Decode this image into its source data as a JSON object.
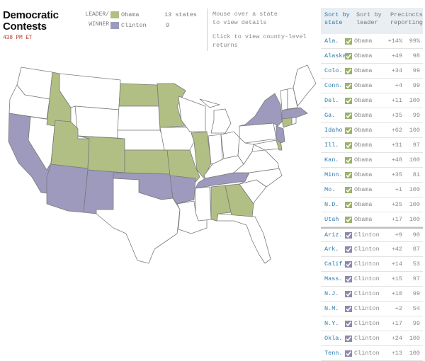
{
  "header": {
    "title_line1": "Democratic",
    "title_line2": "Contests",
    "time": "438 PM ET"
  },
  "legend": {
    "hdr_line1": "LEADER/",
    "hdr_line2": "WINNER",
    "items": [
      {
        "name": "Obama",
        "count": "13 states",
        "color": "#b1bf84"
      },
      {
        "name": "Clinton",
        "count": "9",
        "color": "#9d9abd"
      }
    ]
  },
  "info": {
    "line1": "Mouse over a state",
    "line2": "to view details",
    "line3": "Click to view county-level",
    "line4": "returns"
  },
  "colors": {
    "obama": "#b1bf84",
    "clinton": "#9d9abd",
    "none": "#ffffff",
    "border": "#7a7a7a",
    "check_obama": "#9cb26a",
    "check_clinton": "#8f89ad"
  },
  "table": {
    "col_state": [
      "Sort by",
      "state"
    ],
    "col_leader": [
      "Sort by",
      "leader"
    ],
    "col_prec": [
      "Precincts",
      "reporting"
    ],
    "rows": [
      {
        "state": "Ala.",
        "leader": "Obama",
        "margin": "+14%",
        "prec": "99%"
      },
      {
        "state": "Alaska",
        "leader": "Obama",
        "margin": "+49",
        "prec": "98"
      },
      {
        "state": "Colo.",
        "leader": "Obama",
        "margin": "+34",
        "prec": "99"
      },
      {
        "state": "Conn.",
        "leader": "Obama",
        "margin": "+4",
        "prec": "99"
      },
      {
        "state": "Del.",
        "leader": "Obama",
        "margin": "+11",
        "prec": "100"
      },
      {
        "state": "Ga.",
        "leader": "Obama",
        "margin": "+35",
        "prec": "99"
      },
      {
        "state": "Idaho",
        "leader": "Obama",
        "margin": "+62",
        "prec": "100"
      },
      {
        "state": "Ill.",
        "leader": "Obama",
        "margin": "+31",
        "prec": "97"
      },
      {
        "state": "Kan.",
        "leader": "Obama",
        "margin": "+48",
        "prec": "100"
      },
      {
        "state": "Minn.",
        "leader": "Obama",
        "margin": "+35",
        "prec": "81"
      },
      {
        "state": "Mo.",
        "leader": "Obama",
        "margin": "+1",
        "prec": "100"
      },
      {
        "state": "N.D.",
        "leader": "Obama",
        "margin": "+25",
        "prec": "100"
      },
      {
        "state": "Utah",
        "leader": "Obama",
        "margin": "+17",
        "prec": "100"
      },
      {
        "state": "Ariz.",
        "leader": "Clinton",
        "margin": "+9",
        "prec": "90"
      },
      {
        "state": "Ark.",
        "leader": "Clinton",
        "margin": "+42",
        "prec": "87"
      },
      {
        "state": "Calif.",
        "leader": "Clinton",
        "margin": "+14",
        "prec": "53"
      },
      {
        "state": "Mass.",
        "leader": "Clinton",
        "margin": "+15",
        "prec": "97"
      },
      {
        "state": "N.J.",
        "leader": "Clinton",
        "margin": "+10",
        "prec": "99"
      },
      {
        "state": "N.M.",
        "leader": "Clinton",
        "margin": "+2",
        "prec": "54"
      },
      {
        "state": "N.Y.",
        "leader": "Clinton",
        "margin": "+17",
        "prec": "99"
      },
      {
        "state": "Okla.",
        "leader": "Clinton",
        "margin": "+24",
        "prec": "100"
      },
      {
        "state": "Tenn.",
        "leader": "Clinton",
        "margin": "+13",
        "prec": "100"
      }
    ]
  }
}
